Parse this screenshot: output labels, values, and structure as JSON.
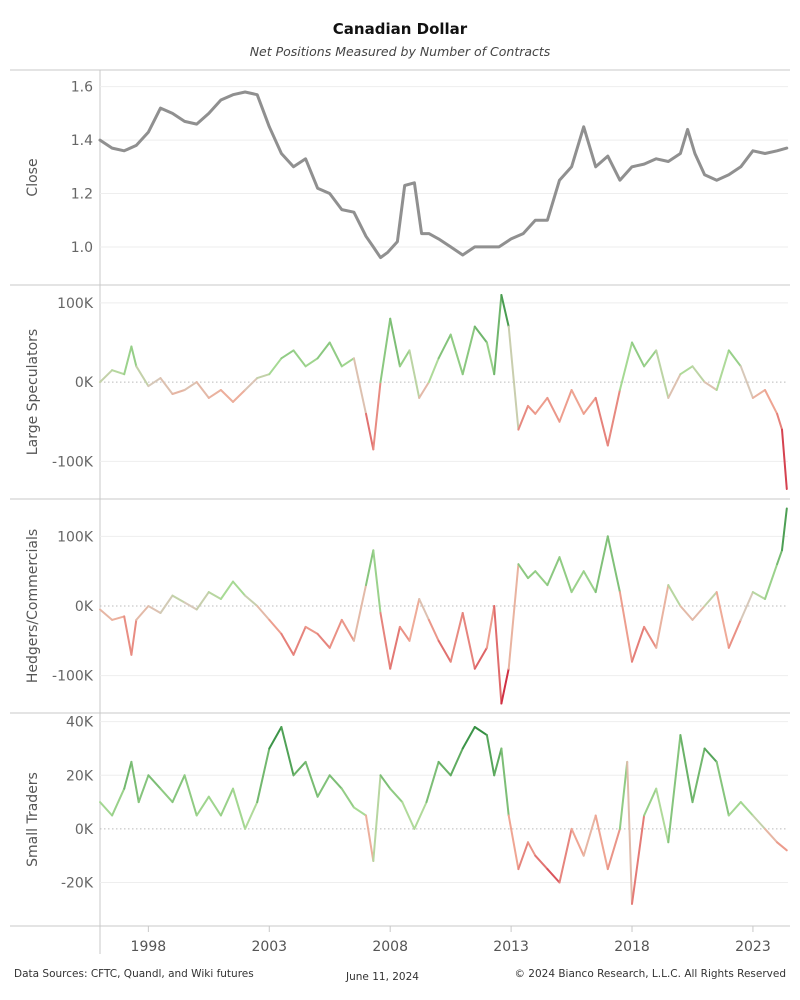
{
  "chart_data": {
    "type": "line",
    "title": "Canadian Dollar",
    "subtitle": "Net Positions Measured by Number of Contracts",
    "x_range": [
      1996.0,
      2024.45
    ],
    "x_tick_labels": [
      "1998",
      "2003",
      "2008",
      "2013",
      "2018",
      "2023"
    ],
    "x_ticks": [
      1998,
      2003,
      2008,
      2013,
      2018,
      2023
    ],
    "series": [
      {
        "name": "Close",
        "ylabel": "Close",
        "color": "#909090",
        "ylim": [
          0.88,
          1.64
        ],
        "y_ticks": [
          1.0,
          1.2,
          1.4,
          1.6
        ],
        "y_tick_labels": [
          "1.0",
          "1.2",
          "1.4",
          "1.6"
        ],
        "x": [
          1996.0,
          1996.5,
          1997.0,
          1997.5,
          1998.0,
          1998.5,
          1999.0,
          1999.5,
          2000.0,
          2000.5,
          2001.0,
          2001.5,
          2002.0,
          2002.5,
          2003.0,
          2003.5,
          2004.0,
          2004.5,
          2005.0,
          2005.5,
          2006.0,
          2006.5,
          2007.0,
          2007.3,
          2007.6,
          2007.9,
          2008.3,
          2008.6,
          2009.0,
          2009.3,
          2009.6,
          2010.0,
          2010.5,
          2011.0,
          2011.5,
          2012.0,
          2012.5,
          2013.0,
          2013.5,
          2014.0,
          2014.5,
          2015.0,
          2015.5,
          2016.0,
          2016.5,
          2017.0,
          2017.5,
          2018.0,
          2018.5,
          2019.0,
          2019.5,
          2020.0,
          2020.3,
          2020.6,
          2021.0,
          2021.5,
          2022.0,
          2022.5,
          2023.0,
          2023.5,
          2024.0,
          2024.4
        ],
        "y": [
          1.4,
          1.37,
          1.36,
          1.38,
          1.43,
          1.52,
          1.5,
          1.47,
          1.46,
          1.5,
          1.55,
          1.57,
          1.58,
          1.57,
          1.45,
          1.35,
          1.3,
          1.33,
          1.22,
          1.2,
          1.14,
          1.13,
          1.04,
          1.0,
          0.96,
          0.98,
          1.02,
          1.23,
          1.24,
          1.05,
          1.05,
          1.03,
          1.0,
          0.97,
          1.0,
          1.0,
          1.0,
          1.03,
          1.05,
          1.1,
          1.1,
          1.25,
          1.3,
          1.45,
          1.3,
          1.34,
          1.25,
          1.3,
          1.31,
          1.33,
          1.32,
          1.35,
          1.44,
          1.35,
          1.27,
          1.25,
          1.27,
          1.3,
          1.36,
          1.35,
          1.36,
          1.37
        ]
      },
      {
        "name": "Large Speculators",
        "ylabel": "Large Speculators",
        "color_positive": "#2e8b3e",
        "color_negative": "#c8102e",
        "ylim": [
          -140000,
          115000
        ],
        "y_ticks": [
          -100000,
          0,
          100000
        ],
        "y_tick_labels": [
          "-100K",
          "0K",
          "100K"
        ],
        "x": [
          1996.0,
          1996.5,
          1997.0,
          1997.3,
          1997.5,
          1998.0,
          1998.5,
          1999.0,
          1999.5,
          2000.0,
          2000.5,
          2001.0,
          2001.5,
          2002.0,
          2002.5,
          2003.0,
          2003.5,
          2004.0,
          2004.5,
          2005.0,
          2005.5,
          2006.0,
          2006.5,
          2007.0,
          2007.3,
          2007.6,
          2008.0,
          2008.4,
          2008.8,
          2009.2,
          2009.6,
          2010.0,
          2010.5,
          2011.0,
          2011.5,
          2012.0,
          2012.3,
          2012.6,
          2012.9,
          2013.3,
          2013.7,
          2014.0,
          2014.5,
          2015.0,
          2015.5,
          2016.0,
          2016.5,
          2017.0,
          2017.5,
          2018.0,
          2018.5,
          2019.0,
          2019.5,
          2020.0,
          2020.5,
          2021.0,
          2021.5,
          2022.0,
          2022.5,
          2023.0,
          2023.5,
          2024.0,
          2024.2,
          2024.4
        ],
        "y": [
          0,
          15000,
          10000,
          45000,
          20000,
          -5000,
          5000,
          -15000,
          -10000,
          0,
          -20000,
          -10000,
          -25000,
          -10000,
          5000,
          10000,
          30000,
          40000,
          20000,
          30000,
          50000,
          20000,
          30000,
          -40000,
          -85000,
          0,
          80000,
          20000,
          40000,
          -20000,
          0,
          30000,
          60000,
          10000,
          70000,
          50000,
          10000,
          110000,
          70000,
          -60000,
          -30000,
          -40000,
          -20000,
          -50000,
          -10000,
          -40000,
          -20000,
          -80000,
          -10000,
          50000,
          20000,
          40000,
          -20000,
          10000,
          20000,
          0,
          -10000,
          40000,
          20000,
          -20000,
          -10000,
          -40000,
          -60000,
          -135000
        ]
      },
      {
        "name": "Hedgers/Commercials",
        "ylabel": "Hedgers/Commercials",
        "color_positive": "#2e8b3e",
        "color_negative": "#c8102e",
        "ylim": [
          -145000,
          145000
        ],
        "y_ticks": [
          -100000,
          0,
          100000
        ],
        "y_tick_labels": [
          "-100K",
          "0K",
          "100K"
        ],
        "x": [
          1996.0,
          1996.5,
          1997.0,
          1997.3,
          1997.5,
          1998.0,
          1998.5,
          1999.0,
          1999.5,
          2000.0,
          2000.5,
          2001.0,
          2001.5,
          2002.0,
          2002.5,
          2003.0,
          2003.5,
          2004.0,
          2004.5,
          2005.0,
          2005.5,
          2006.0,
          2006.5,
          2007.0,
          2007.3,
          2007.6,
          2008.0,
          2008.4,
          2008.8,
          2009.2,
          2009.6,
          2010.0,
          2010.5,
          2011.0,
          2011.5,
          2012.0,
          2012.3,
          2012.6,
          2012.9,
          2013.3,
          2013.7,
          2014.0,
          2014.5,
          2015.0,
          2015.5,
          2016.0,
          2016.5,
          2017.0,
          2017.5,
          2018.0,
          2018.5,
          2019.0,
          2019.5,
          2020.0,
          2020.5,
          2021.0,
          2021.5,
          2022.0,
          2022.5,
          2023.0,
          2023.5,
          2024.0,
          2024.2,
          2024.4
        ],
        "y": [
          -5000,
          -20000,
          -15000,
          -70000,
          -20000,
          0,
          -10000,
          15000,
          5000,
          -5000,
          20000,
          10000,
          35000,
          15000,
          0,
          -20000,
          -40000,
          -70000,
          -30000,
          -40000,
          -60000,
          -20000,
          -50000,
          30000,
          80000,
          -10000,
          -90000,
          -30000,
          -50000,
          10000,
          -20000,
          -50000,
          -80000,
          -10000,
          -90000,
          -60000,
          0,
          -140000,
          -90000,
          60000,
          40000,
          50000,
          30000,
          70000,
          20000,
          50000,
          20000,
          100000,
          20000,
          -80000,
          -30000,
          -60000,
          30000,
          0,
          -20000,
          0,
          20000,
          -60000,
          -20000,
          20000,
          10000,
          60000,
          80000,
          140000
        ]
      },
      {
        "name": "Small Traders",
        "ylabel": "Small Traders",
        "color_positive": "#2e8b3e",
        "color_negative": "#c8102e",
        "ylim": [
          -34000,
          41000
        ],
        "y_ticks": [
          -20000,
          0,
          20000,
          40000
        ],
        "y_tick_labels": [
          "-20K",
          "0K",
          "20K",
          "40K"
        ],
        "x": [
          1996.0,
          1996.5,
          1997.0,
          1997.3,
          1997.6,
          1998.0,
          1998.5,
          1999.0,
          1999.5,
          2000.0,
          2000.5,
          2001.0,
          2001.5,
          2002.0,
          2002.5,
          2003.0,
          2003.5,
          2004.0,
          2004.5,
          2005.0,
          2005.5,
          2006.0,
          2006.5,
          2007.0,
          2007.3,
          2007.6,
          2008.0,
          2008.5,
          2009.0,
          2009.5,
          2010.0,
          2010.5,
          2011.0,
          2011.5,
          2012.0,
          2012.3,
          2012.6,
          2012.9,
          2013.3,
          2013.7,
          2014.0,
          2014.5,
          2015.0,
          2015.5,
          2016.0,
          2016.5,
          2017.0,
          2017.5,
          2017.8,
          2018.0,
          2018.5,
          2019.0,
          2019.5,
          2020.0,
          2020.5,
          2021.0,
          2021.5,
          2022.0,
          2022.5,
          2023.0,
          2023.5,
          2024.0,
          2024.4
        ],
        "y": [
          10000,
          5000,
          15000,
          25000,
          10000,
          20000,
          15000,
          10000,
          20000,
          5000,
          12000,
          5000,
          15000,
          0,
          10000,
          30000,
          38000,
          20000,
          25000,
          12000,
          20000,
          15000,
          8000,
          5000,
          -12000,
          20000,
          15000,
          10000,
          0,
          10000,
          25000,
          20000,
          30000,
          38000,
          35000,
          20000,
          30000,
          5000,
          -15000,
          -5000,
          -10000,
          -15000,
          -20000,
          0,
          -10000,
          5000,
          -15000,
          0,
          25000,
          -28000,
          5000,
          15000,
          -5000,
          35000,
          10000,
          30000,
          25000,
          5000,
          10000,
          5000,
          0,
          -5000,
          -8000
        ]
      }
    ]
  },
  "footer": {
    "sources": "Data Sources: CFTC, Quandl, and Wiki futures",
    "date": "June 11, 2024",
    "copyright": "© 2024 Bianco Research, L.L.C. All Rights Reserved"
  }
}
